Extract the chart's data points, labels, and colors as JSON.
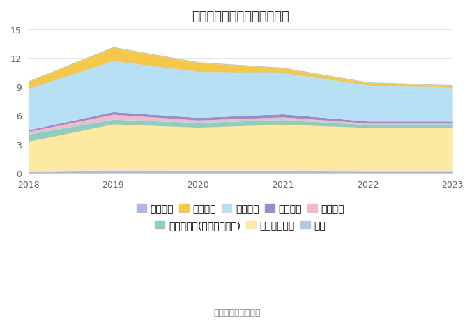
{
  "years": [
    2018,
    2019,
    2020,
    2021,
    2022,
    2023
  ],
  "title": "历年主要负债堆积图（亿元）",
  "source": "数据来源：恒生聚源",
  "ylim": [
    0,
    15
  ],
  "yticks": [
    0,
    3,
    6,
    9,
    12,
    15
  ],
  "series": [
    {
      "name": "短期借款",
      "color": "#b0b8e8",
      "values": [
        0.18,
        0.28,
        0.25,
        0.25,
        0.22,
        0.22
      ]
    },
    {
      "name": "长期递延收益",
      "color": "#fde9a2",
      "values": [
        3.1,
        4.8,
        4.5,
        4.8,
        4.5,
        4.5
      ]
    },
    {
      "name": "其他应付款(含利息和股利)",
      "color": "#8ecdc4",
      "values": [
        0.75,
        0.5,
        0.5,
        0.5,
        0.3,
        0.28
      ]
    },
    {
      "name": "应交税费",
      "color": "#f2b8cc",
      "values": [
        0.28,
        0.52,
        0.25,
        0.27,
        0.17,
        0.17
      ]
    },
    {
      "name": "合同负债",
      "color": "#9090cc",
      "values": [
        0.17,
        0.27,
        0.27,
        0.32,
        0.2,
        0.22
      ]
    },
    {
      "name": "应付账款",
      "color": "#b8e0f5",
      "values": [
        4.3,
        5.3,
        4.8,
        4.3,
        3.75,
        3.5
      ]
    },
    {
      "name": "应付票据",
      "color": "#f5c84a",
      "values": [
        0.72,
        1.4,
        0.92,
        0.48,
        0.26,
        0.2
      ]
    },
    {
      "name": "其它",
      "color": "#b0c8e0",
      "values": [
        0.1,
        0.1,
        0.1,
        0.1,
        0.1,
        0.1
      ]
    }
  ],
  "legend_row1_labels": [
    "短期借款",
    "应付票据",
    "应付账款",
    "合同负债",
    "应交税费"
  ],
  "legend_row1_colors": [
    "#b0b8e8",
    "#f5c84a",
    "#b8e0f5",
    "#9090cc",
    "#f2b8cc"
  ],
  "legend_row2_labels": [
    "其他应付款(含利息和股利)",
    "长期递延收益",
    "其它"
  ],
  "legend_row2_colors": [
    "#8ecdc4",
    "#fde9a2",
    "#b0c8e0"
  ],
  "background_color": "#ffffff",
  "grid_color": "#e5e5e5",
  "title_fontsize": 13,
  "tick_fontsize": 9,
  "legend_fontsize": 8.5
}
